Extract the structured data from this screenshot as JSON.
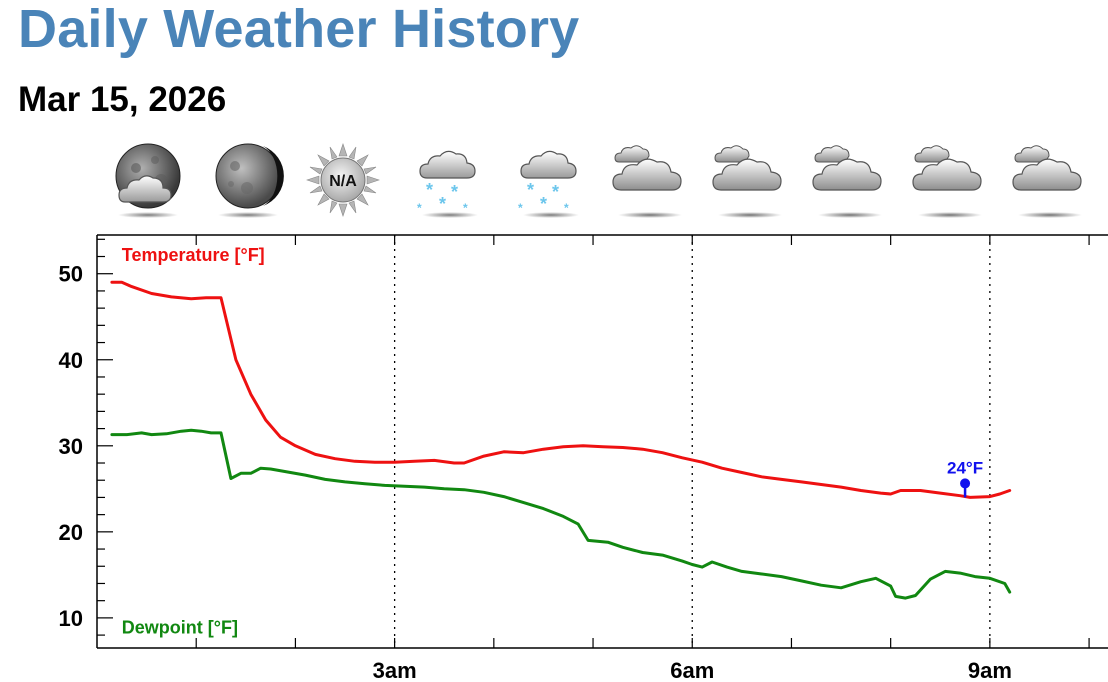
{
  "header": {
    "title": "Daily Weather History",
    "date": "Mar 15, 2026"
  },
  "icons": [
    {
      "name": "partly-cloudy-night-icon",
      "label": ""
    },
    {
      "name": "clear-night-icon",
      "label": ""
    },
    {
      "name": "na-icon",
      "label": "N/A"
    },
    {
      "name": "light-snow-icon",
      "label": ""
    },
    {
      "name": "light-snow-icon",
      "label": ""
    },
    {
      "name": "cloudy-icon",
      "label": ""
    },
    {
      "name": "cloudy-icon",
      "label": ""
    },
    {
      "name": "cloudy-icon",
      "label": ""
    },
    {
      "name": "cloudy-icon",
      "label": ""
    },
    {
      "name": "cloudy-icon",
      "label": ""
    }
  ],
  "colors": {
    "title": "#4a84b8",
    "temperature": "#ee1111",
    "dewpoint": "#118811",
    "marker": "#1111ee"
  },
  "chart_data": {
    "type": "line",
    "xlabel": "",
    "ylabel": "",
    "xunit": "hours",
    "xlim": [
      0,
      10.1
    ],
    "ylim": [
      6.5,
      54.5
    ],
    "yticks": [
      10,
      20,
      30,
      40,
      50
    ],
    "xticks": [
      {
        "x": 3,
        "label": "3am"
      },
      {
        "x": 6,
        "label": "6am"
      },
      {
        "x": 9,
        "label": "9am"
      }
    ],
    "grid_x": [
      3,
      6,
      9
    ],
    "series": [
      {
        "name": "Temperature [°F]",
        "color": "#ee1111",
        "points": [
          [
            0.15,
            49
          ],
          [
            0.25,
            49
          ],
          [
            0.35,
            48.5
          ],
          [
            0.55,
            47.7
          ],
          [
            0.75,
            47.3
          ],
          [
            0.95,
            47.1
          ],
          [
            1.1,
            47.2
          ],
          [
            1.25,
            47.2
          ],
          [
            1.4,
            40
          ],
          [
            1.55,
            36
          ],
          [
            1.7,
            33
          ],
          [
            1.85,
            31
          ],
          [
            2.0,
            30
          ],
          [
            2.2,
            29
          ],
          [
            2.4,
            28.5
          ],
          [
            2.6,
            28.2
          ],
          [
            2.8,
            28.1
          ],
          [
            3.0,
            28.1
          ],
          [
            3.2,
            28.2
          ],
          [
            3.4,
            28.3
          ],
          [
            3.6,
            28
          ],
          [
            3.7,
            28
          ],
          [
            3.9,
            28.8
          ],
          [
            4.1,
            29.3
          ],
          [
            4.3,
            29.2
          ],
          [
            4.5,
            29.6
          ],
          [
            4.7,
            29.9
          ],
          [
            4.9,
            30
          ],
          [
            5.1,
            29.9
          ],
          [
            5.3,
            29.8
          ],
          [
            5.5,
            29.6
          ],
          [
            5.7,
            29.2
          ],
          [
            5.9,
            28.6
          ],
          [
            6.1,
            28.1
          ],
          [
            6.3,
            27.4
          ],
          [
            6.5,
            26.9
          ],
          [
            6.7,
            26.4
          ],
          [
            6.9,
            26.1
          ],
          [
            7.1,
            25.8
          ],
          [
            7.3,
            25.5
          ],
          [
            7.5,
            25.2
          ],
          [
            7.7,
            24.8
          ],
          [
            7.9,
            24.5
          ],
          [
            8.0,
            24.4
          ],
          [
            8.1,
            24.8
          ],
          [
            8.3,
            24.8
          ],
          [
            8.5,
            24.5
          ],
          [
            8.7,
            24.2
          ],
          [
            8.8,
            24
          ],
          [
            9.0,
            24.1
          ],
          [
            9.1,
            24.4
          ],
          [
            9.2,
            24.8
          ]
        ]
      },
      {
        "name": "Dewpoint [°F]",
        "color": "#118811",
        "points": [
          [
            0.15,
            31.3
          ],
          [
            0.3,
            31.3
          ],
          [
            0.45,
            31.5
          ],
          [
            0.55,
            31.3
          ],
          [
            0.7,
            31.4
          ],
          [
            0.85,
            31.7
          ],
          [
            0.95,
            31.8
          ],
          [
            1.05,
            31.7
          ],
          [
            1.15,
            31.5
          ],
          [
            1.25,
            31.5
          ],
          [
            1.35,
            26.2
          ],
          [
            1.45,
            26.8
          ],
          [
            1.55,
            26.8
          ],
          [
            1.65,
            27.4
          ],
          [
            1.75,
            27.3
          ],
          [
            1.9,
            27
          ],
          [
            2.1,
            26.6
          ],
          [
            2.3,
            26.1
          ],
          [
            2.5,
            25.8
          ],
          [
            2.7,
            25.6
          ],
          [
            2.9,
            25.4
          ],
          [
            3.1,
            25.3
          ],
          [
            3.3,
            25.2
          ],
          [
            3.5,
            25
          ],
          [
            3.7,
            24.9
          ],
          [
            3.9,
            24.6
          ],
          [
            4.1,
            24.1
          ],
          [
            4.3,
            23.4
          ],
          [
            4.5,
            22.7
          ],
          [
            4.7,
            21.8
          ],
          [
            4.85,
            20.9
          ],
          [
            4.95,
            19
          ],
          [
            5.15,
            18.8
          ],
          [
            5.3,
            18.2
          ],
          [
            5.5,
            17.6
          ],
          [
            5.7,
            17.3
          ],
          [
            5.9,
            16.6
          ],
          [
            6.0,
            16.2
          ],
          [
            6.1,
            15.9
          ],
          [
            6.2,
            16.5
          ],
          [
            6.35,
            15.9
          ],
          [
            6.5,
            15.4
          ],
          [
            6.7,
            15.1
          ],
          [
            6.9,
            14.8
          ],
          [
            7.1,
            14.3
          ],
          [
            7.3,
            13.8
          ],
          [
            7.5,
            13.5
          ],
          [
            7.7,
            14.2
          ],
          [
            7.85,
            14.6
          ],
          [
            8.0,
            13.7
          ],
          [
            8.05,
            12.5
          ],
          [
            8.15,
            12.3
          ],
          [
            8.25,
            12.6
          ],
          [
            8.4,
            14.5
          ],
          [
            8.55,
            15.4
          ],
          [
            8.7,
            15.2
          ],
          [
            8.85,
            14.8
          ],
          [
            9.0,
            14.6
          ],
          [
            9.15,
            14
          ],
          [
            9.2,
            13
          ]
        ]
      }
    ],
    "series_labels": [
      {
        "series": 0,
        "text": "Temperature [°F]",
        "x": 0.25,
        "y": 51.5
      },
      {
        "series": 1,
        "text": "Dewpoint [°F]",
        "x": 0.25,
        "y": 8.2
      }
    ],
    "annotations": [
      {
        "text": "24°F",
        "x": 8.75,
        "y": 24,
        "color": "#1111ee"
      }
    ]
  }
}
